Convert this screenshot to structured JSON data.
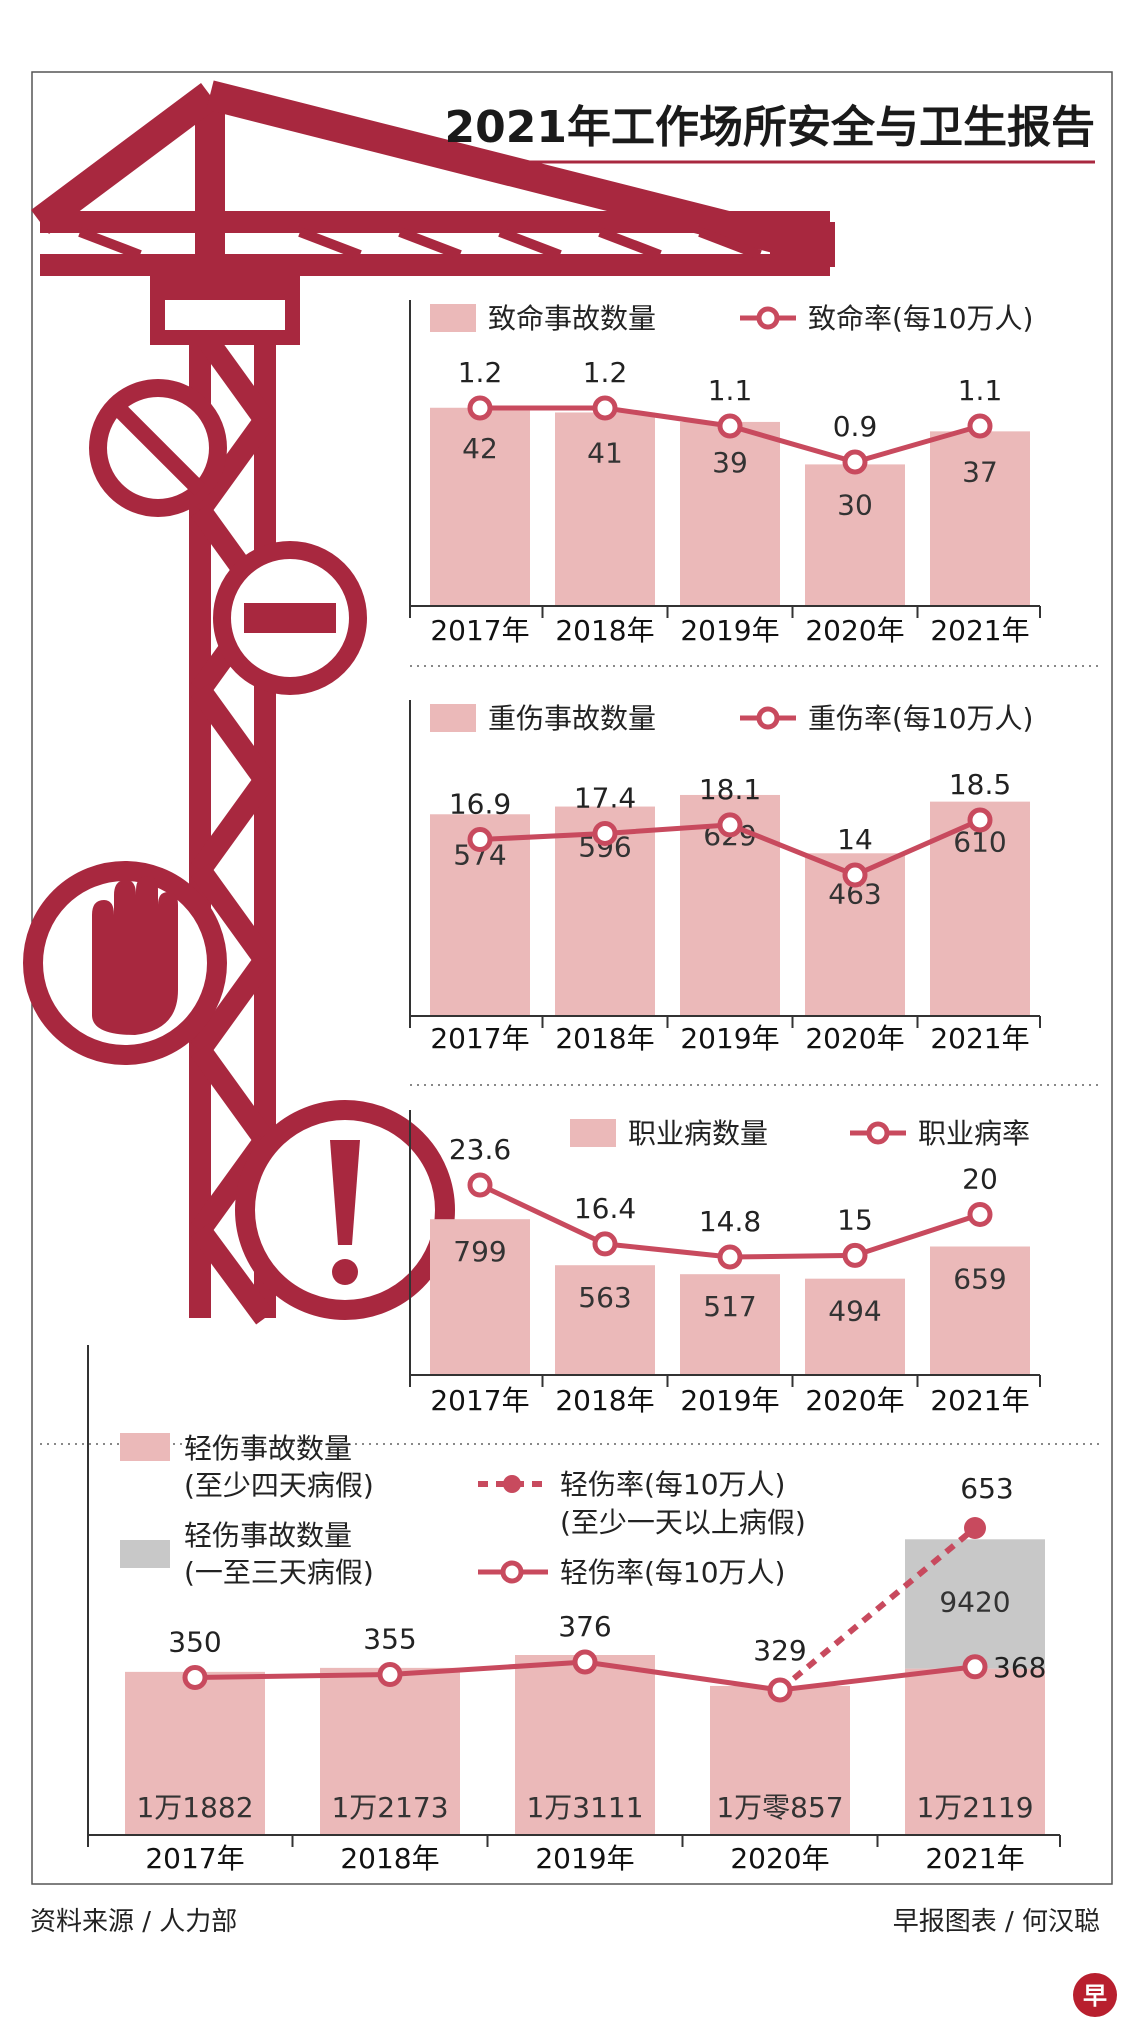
{
  "title": "2021年工作场所安全与卫生报告",
  "source": "资料来源 / 人力部",
  "credit": "早报图表 / 何汉聪",
  "logo_text": "早",
  "colors": {
    "bar": "#ebb9b9",
    "bar_gray": "#c8c8c8",
    "line": "#c84a5e",
    "crane": "#a8283f",
    "title_rule": "#a8283f"
  },
  "chart_data": [
    {
      "type": "bar",
      "id": "fatal",
      "categories": [
        "2017年",
        "2018年",
        "2019年",
        "2020年",
        "2021年"
      ],
      "series": [
        {
          "name": "致命事故数量",
          "kind": "bar",
          "values": [
            42,
            41,
            39,
            30,
            37
          ]
        },
        {
          "name": "致命率(每10万人)",
          "kind": "line",
          "values": [
            1.2,
            1.2,
            1.1,
            0.9,
            1.1
          ]
        }
      ]
    },
    {
      "type": "bar",
      "id": "major",
      "categories": [
        "2017年",
        "2018年",
        "2019年",
        "2020年",
        "2021年"
      ],
      "series": [
        {
          "name": "重伤事故数量",
          "kind": "bar",
          "values": [
            574,
            596,
            629,
            463,
            610
          ]
        },
        {
          "name": "重伤率(每10万人)",
          "kind": "line",
          "values": [
            16.9,
            17.4,
            18.1,
            14,
            18.5
          ]
        }
      ]
    },
    {
      "type": "bar",
      "id": "occ",
      "categories": [
        "2017年",
        "2018年",
        "2019年",
        "2020年",
        "2021年"
      ],
      "series": [
        {
          "name": "职业病数量",
          "kind": "bar",
          "values": [
            799,
            563,
            517,
            494,
            659
          ]
        },
        {
          "name": "职业病率",
          "kind": "line",
          "values": [
            23.6,
            16.4,
            14.8,
            15,
            20
          ]
        }
      ]
    },
    {
      "type": "bar",
      "id": "minor",
      "categories": [
        "2017年",
        "2018年",
        "2019年",
        "2020年",
        "2021年"
      ],
      "series": [
        {
          "name": "轻伤事故数量(至少四天病假)",
          "name_line1": "轻伤事故数量",
          "name_line2": "(至少四天病假)",
          "kind": "bar",
          "values": [
            11882,
            12173,
            13111,
            10857,
            12119
          ],
          "labels": [
            "1万1882",
            "1万2173",
            "1万3111",
            "1万零857",
            "1万2119"
          ]
        },
        {
          "name": "轻伤事故数量(一至三天病假)",
          "name_line1": "轻伤事故数量",
          "name_line2": "(一至三天病假)",
          "kind": "bar_stack",
          "values": [
            null,
            null,
            null,
            null,
            9420
          ],
          "labels": [
            "",
            "",
            "",
            "",
            "9420"
          ]
        },
        {
          "name": "轻伤率(每10万人)(至少一天以上病假)",
          "name_line1": "轻伤率(每10万人)",
          "name_line2": "(至少一天以上病假)",
          "kind": "dashed_line",
          "values": [
            null,
            null,
            null,
            329,
            653
          ]
        },
        {
          "name": "轻伤率(每10万人)",
          "kind": "line",
          "values": [
            350,
            355,
            376,
            329,
            368
          ]
        }
      ]
    }
  ]
}
